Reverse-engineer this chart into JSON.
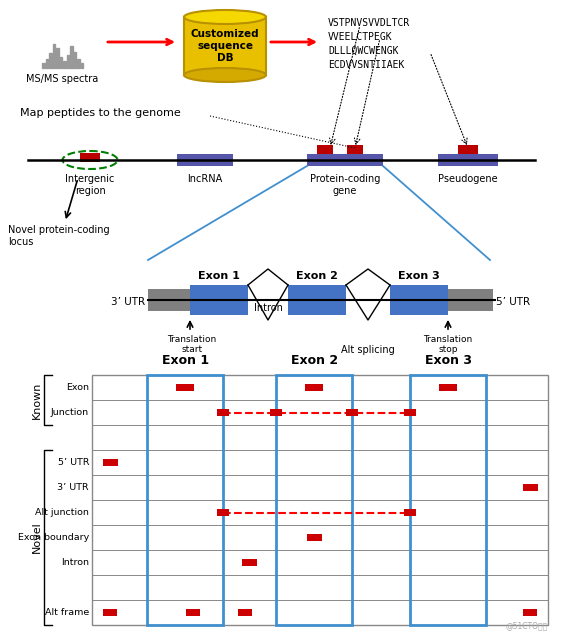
{
  "fig_width": 5.62,
  "fig_height": 6.39,
  "bg_color": "#ffffff",
  "peptides": [
    "VSTPNVSVVDLTCR",
    "VVEELCTPEGK",
    "DLLLQWCWENGK",
    "ECDVVSNTIIAEK"
  ],
  "row_labels": [
    "Exon",
    "Junction",
    "",
    "5’ UTR",
    "3’ UTR",
    "Alt junction",
    "Exon boundary",
    "Intron",
    "",
    "Alt frame"
  ]
}
